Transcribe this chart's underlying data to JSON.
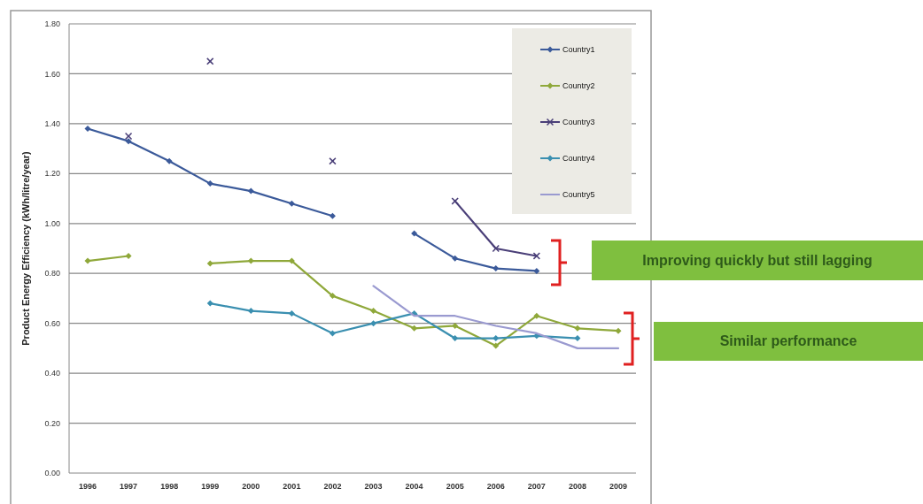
{
  "chart_data": {
    "type": "line",
    "ylabel": "Product Energy Efficiency (kWh/litre/year)",
    "categories": [
      "1996",
      "1997",
      "1998",
      "1999",
      "2000",
      "2001",
      "2002",
      "2003",
      "2004",
      "2005",
      "2006",
      "2007",
      "2008",
      "2009"
    ],
    "series": [
      {
        "name": "Country1",
        "color": "#3b5a9a",
        "values": [
          1.38,
          1.33,
          1.25,
          1.16,
          1.13,
          1.08,
          1.03,
          null,
          0.96,
          0.86,
          0.82,
          0.81,
          null,
          null
        ]
      },
      {
        "name": "Country2",
        "color": "#8fa83a",
        "values": [
          0.85,
          0.87,
          null,
          0.84,
          0.85,
          0.85,
          0.71,
          0.65,
          0.58,
          0.59,
          0.51,
          0.63,
          0.58,
          0.57
        ]
      },
      {
        "name": "Country3",
        "color": "#4a3f78",
        "marker": "cross",
        "values": [
          null,
          1.35,
          null,
          1.65,
          null,
          null,
          1.25,
          null,
          null,
          1.09,
          0.9,
          0.87,
          null,
          null
        ]
      },
      {
        "name": "Country4",
        "color": "#3a8fb0",
        "values": [
          null,
          null,
          null,
          0.68,
          0.65,
          0.64,
          0.56,
          0.6,
          0.64,
          0.54,
          0.54,
          0.55,
          0.54,
          null
        ]
      },
      {
        "name": "Country5",
        "color": "#9a9ad0",
        "marker": "none",
        "values": [
          null,
          null,
          null,
          null,
          null,
          null,
          null,
          0.75,
          0.63,
          0.63,
          0.59,
          0.56,
          0.5,
          0.5
        ]
      }
    ],
    "ylim": [
      0,
      1.8
    ],
    "yticks": [
      {
        "value": 0,
        "label": "0.00"
      },
      {
        "value": 0.2,
        "label": "0.20"
      },
      {
        "value": 0.4,
        "label": "0.40"
      },
      {
        "value": 0.6,
        "label": "0.60"
      },
      {
        "value": 0.8,
        "label": "0.80"
      },
      {
        "value": 1,
        "label": "1.00"
      },
      {
        "value": 1.2,
        "label": "1.20"
      },
      {
        "value": 1.4,
        "label": "1.40"
      },
      {
        "value": 1.6,
        "label": "1.60"
      },
      {
        "value": 1.8,
        "label": "1.80"
      }
    ],
    "grid": "y",
    "legend": "top right",
    "marker": "diamond",
    "annotations": [
      "Improving quickly but  still lagging",
      "Similar performance"
    ]
  }
}
